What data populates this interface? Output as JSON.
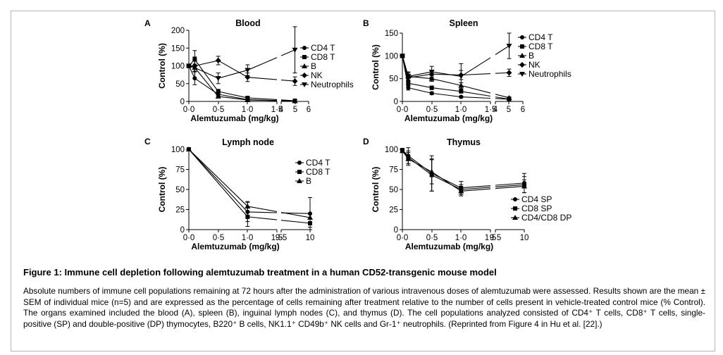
{
  "figure": {
    "title": "Figure 1: Immune cell depletion following alemtuzumab treatment in a human CD52-transgenic mouse model",
    "caption": "Absolute numbers of immune cell populations remaining at 72 hours after the administration of various intravenous doses of alemtuzumab were assessed. Results shown are the mean ± SEM of individual mice (n=5) and are expressed as the percentage of cells remaining after treatment relative to the number of cells present in vehicle-treated control mice (% Control). The organs examined included the blood (A), spleen (B), inguinal lymph nodes (C), and thymus (D). The cell populations analyzed consisted of CD4⁺ T cells, CD8⁺ T cells, single-positive (SP) and double-positive (DP) thymocytes, B220⁺ B cells, NK1.1⁺ CD49b⁺ NK cells and Gr-1⁺ neutrophils. (Reprinted from Figure 4 in Hu et al. [22].)"
  },
  "chart_data": [
    {
      "type": "line",
      "panel": "A",
      "title": "Blood",
      "xlabel": "Alemtuzumab (mg/kg)",
      "ylabel": "Control (%)",
      "ylim": [
        0,
        200
      ],
      "yticks": [
        "0",
        "50",
        "100",
        "150",
        "200"
      ],
      "xticks": [
        "0·0",
        "0·5",
        "1·0",
        "1·5",
        "4",
        "5",
        "6"
      ],
      "x_axis_break": [
        1.5,
        4
      ],
      "series": [
        {
          "name": "CD4 T",
          "marker": "circle",
          "x": [
            0,
            0.1,
            0.5,
            1.0,
            5
          ],
          "y": [
            100,
            65,
            20,
            5,
            1
          ],
          "err": [
            5,
            18,
            5,
            2,
            1
          ]
        },
        {
          "name": "CD8 T",
          "marker": "square",
          "x": [
            0,
            0.1,
            0.5,
            1.0,
            5
          ],
          "y": [
            100,
            118,
            28,
            10,
            2
          ],
          "err": [
            5,
            25,
            6,
            3,
            1
          ]
        },
        {
          "name": "B",
          "marker": "triangle-up",
          "x": [
            0,
            0.1,
            0.5,
            1.0,
            5
          ],
          "y": [
            100,
            95,
            14,
            4,
            1
          ],
          "err": [
            5,
            10,
            4,
            2,
            1
          ]
        },
        {
          "name": "NK",
          "marker": "diamond",
          "x": [
            0,
            0.1,
            0.5,
            1.0,
            5
          ],
          "y": [
            100,
            100,
            115,
            68,
            57
          ],
          "err": [
            5,
            15,
            12,
            12,
            12
          ]
        },
        {
          "name": "Neutrophils",
          "marker": "triangle-down",
          "x": [
            0,
            0.1,
            0.5,
            1.0,
            5
          ],
          "y": [
            100,
            95,
            65,
            88,
            145
          ],
          "err": [
            5,
            30,
            15,
            15,
            65
          ]
        }
      ]
    },
    {
      "type": "line",
      "panel": "B",
      "title": "Spleen",
      "xlabel": "Alemtuzumab (mg/kg)",
      "ylabel": "Control (%)",
      "ylim": [
        0,
        150
      ],
      "yticks": [
        "0",
        "50",
        "100",
        "150"
      ],
      "xticks": [
        "0·0",
        "0·5",
        "1·0",
        "1·5",
        "4",
        "5",
        "6"
      ],
      "x_axis_break": [
        1.5,
        4
      ],
      "series": [
        {
          "name": "CD4 T",
          "marker": "circle",
          "x": [
            0,
            0.1,
            0.5,
            1.0,
            5
          ],
          "y": [
            100,
            30,
            18,
            10,
            5
          ],
          "err": [
            3,
            5,
            3,
            2,
            1
          ]
        },
        {
          "name": "CD8 T",
          "marker": "square",
          "x": [
            0,
            0.1,
            0.5,
            1.0,
            5
          ],
          "y": [
            100,
            40,
            30,
            22,
            5
          ],
          "err": [
            3,
            6,
            4,
            3,
            1
          ]
        },
        {
          "name": "B",
          "marker": "triangle-up",
          "x": [
            0,
            0.1,
            0.5,
            1.0,
            5
          ],
          "y": [
            100,
            55,
            50,
            35,
            8
          ],
          "err": [
            3,
            8,
            6,
            6,
            2
          ]
        },
        {
          "name": "NK",
          "marker": "diamond",
          "x": [
            0,
            0.1,
            0.5,
            1.0,
            5
          ],
          "y": [
            100,
            52,
            60,
            58,
            63
          ],
          "err": [
            3,
            8,
            8,
            10,
            8
          ]
        },
        {
          "name": "Neutrophils",
          "marker": "triangle-down",
          "x": [
            0,
            0.1,
            0.5,
            1.0,
            5
          ],
          "y": [
            100,
            55,
            65,
            55,
            122
          ],
          "err": [
            3,
            10,
            12,
            28,
            28
          ]
        }
      ]
    },
    {
      "type": "line",
      "panel": "C",
      "title": "Lymph node",
      "xlabel": "Alemtuzumab (mg/kg)",
      "ylabel": "Control (%)",
      "ylim": [
        0,
        100
      ],
      "yticks": [
        "0",
        "25",
        "50",
        "75",
        "100"
      ],
      "xticks": [
        "0·0",
        "0·5",
        "1·0",
        "1·5",
        "9·5",
        "10"
      ],
      "x_axis_break": [
        1.5,
        9.5
      ],
      "series": [
        {
          "name": "CD4 T",
          "marker": "circle",
          "x": [
            0,
            1.0,
            10
          ],
          "y": [
            100,
            22,
            20
          ],
          "err": [
            1,
            12,
            20
          ]
        },
        {
          "name": "CD8 T",
          "marker": "square",
          "x": [
            0,
            1.0,
            10
          ],
          "y": [
            100,
            16,
            8
          ],
          "err": [
            1,
            12,
            5
          ]
        },
        {
          "name": "B",
          "marker": "triangle-up",
          "x": [
            0,
            1.0,
            10
          ],
          "y": [
            100,
            29,
            15
          ],
          "err": [
            1,
            6,
            5
          ]
        }
      ]
    },
    {
      "type": "line",
      "panel": "D",
      "title": "Thymus",
      "xlabel": "Alemtuzumab (mg/kg)",
      "ylabel": "Control (%)",
      "ylim": [
        0,
        100
      ],
      "yticks": [
        "0",
        "25",
        "50",
        "75",
        "100"
      ],
      "xticks": [
        "0·0",
        "0·5",
        "1·0",
        "1·5",
        "9·5",
        "10"
      ],
      "x_axis_break": [
        1.5,
        9.5
      ],
      "series": [
        {
          "name": "CD4 SP",
          "marker": "circle",
          "x": [
            0,
            0.1,
            0.5,
            1.0,
            10
          ],
          "y": [
            99,
            92,
            70,
            52,
            58
          ],
          "err": [
            2,
            10,
            22,
            8,
            12
          ]
        },
        {
          "name": "CD8 SP",
          "marker": "square",
          "x": [
            0,
            0.1,
            0.5,
            1.0,
            10
          ],
          "y": [
            99,
            90,
            68,
            50,
            56
          ],
          "err": [
            2,
            8,
            20,
            6,
            10
          ]
        },
        {
          "name": "CD4/CD8 DP",
          "marker": "triangle-up",
          "x": [
            0,
            0.1,
            0.5,
            1.0,
            10
          ],
          "y": [
            98,
            88,
            72,
            48,
            54
          ],
          "err": [
            2,
            8,
            15,
            6,
            8
          ]
        }
      ]
    }
  ]
}
